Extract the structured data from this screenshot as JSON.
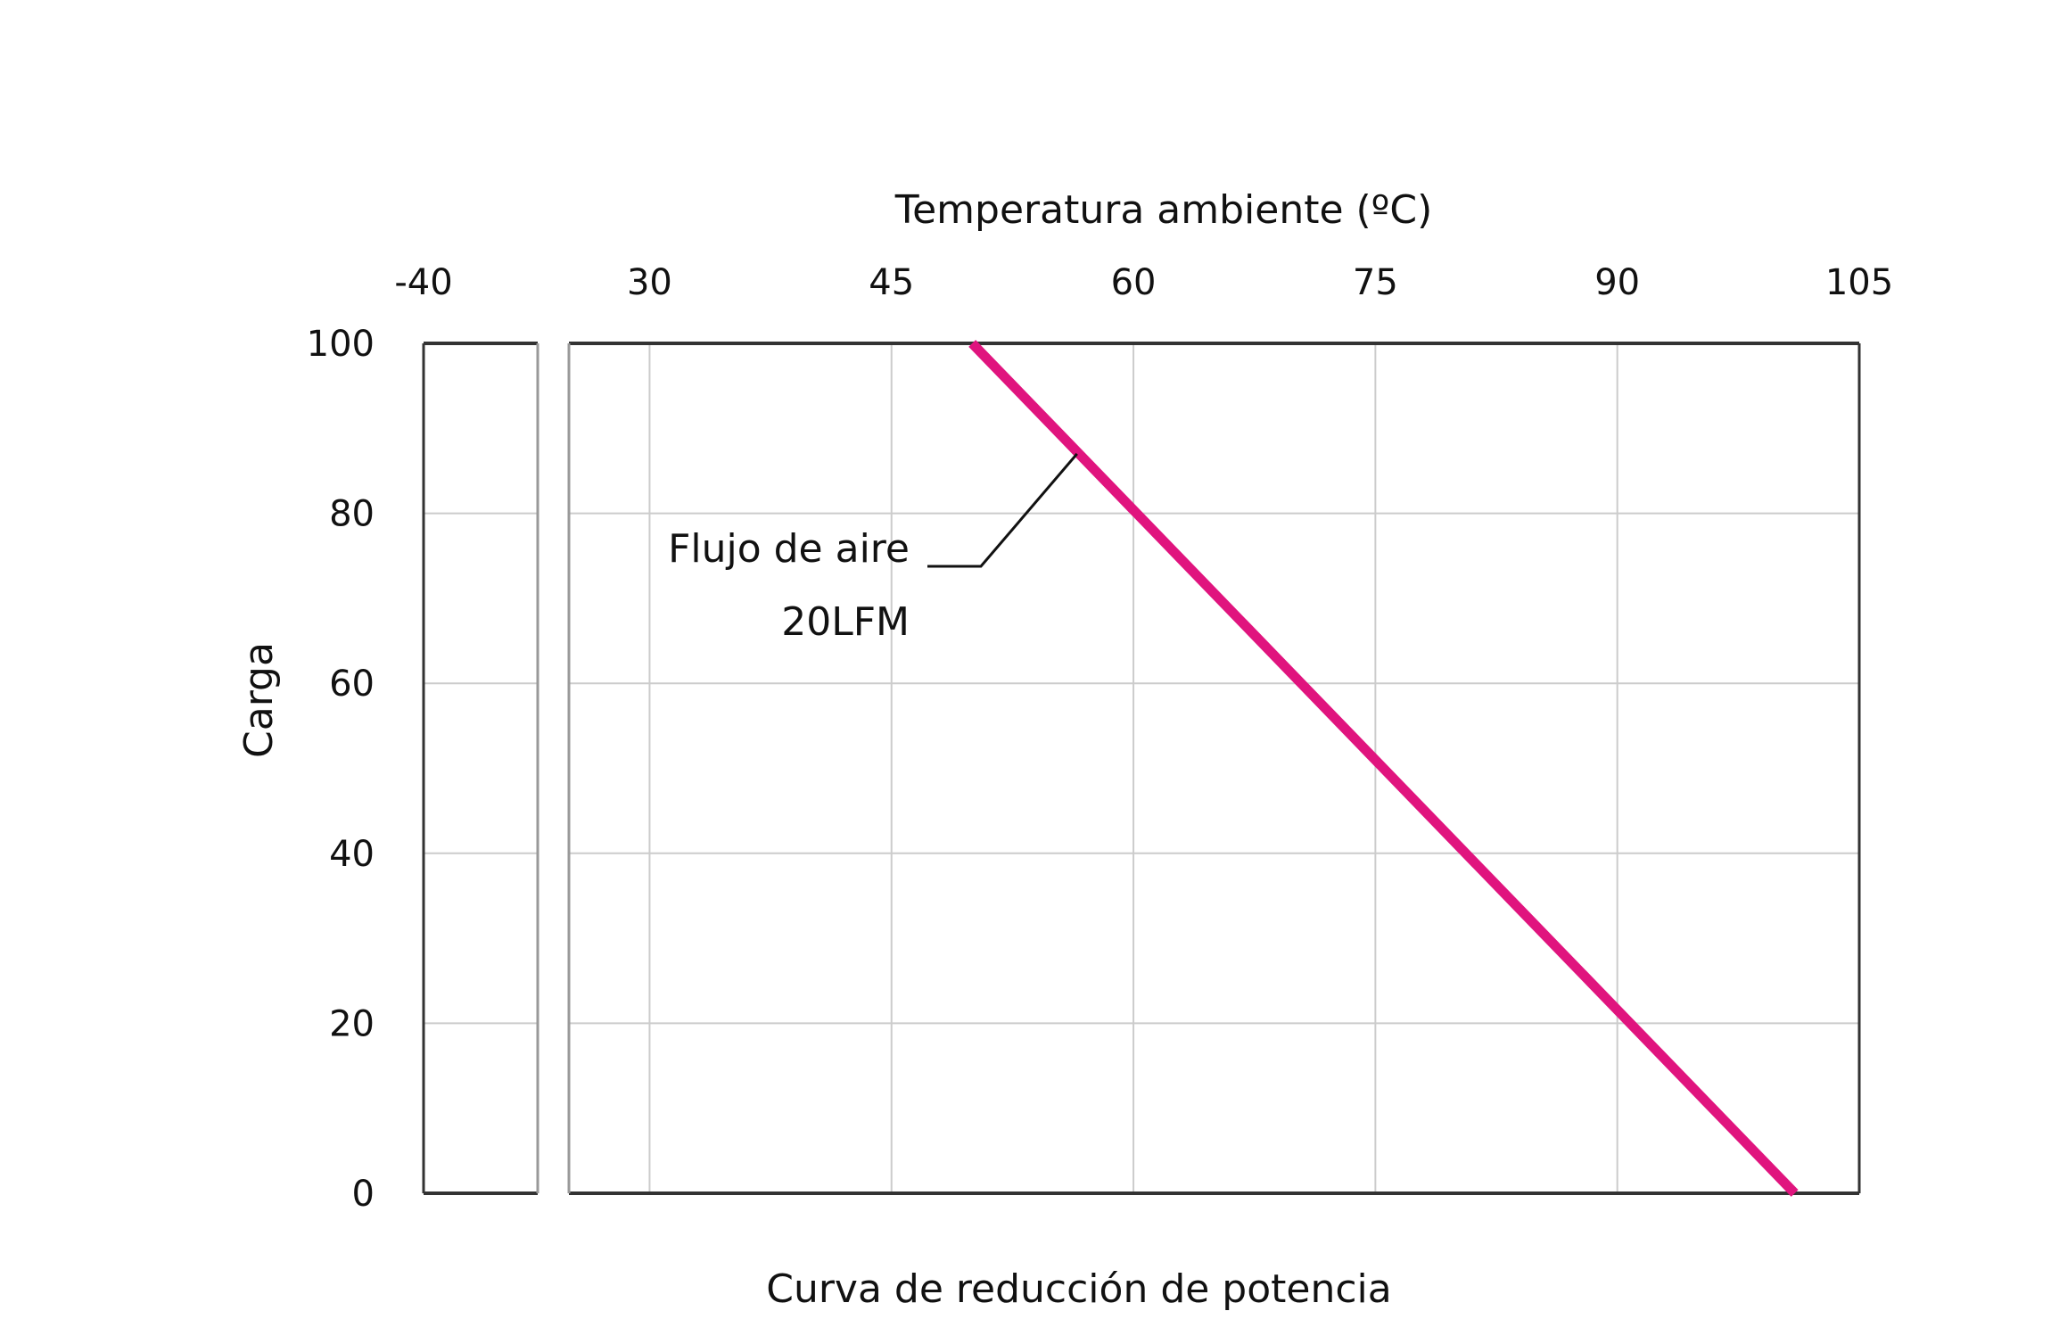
{
  "chart_data": {
    "type": "line",
    "title": "",
    "caption": "Curva de reducción de potencia",
    "xlabel": "Temperatura ambiente (ºC)",
    "ylabel": "Carga",
    "x_axis_position": "top",
    "x_axis_break": true,
    "x_ticks": [
      -40,
      30,
      45,
      60,
      75,
      90,
      105
    ],
    "x_tick_labels": [
      "-40",
      "30",
      "45",
      "60",
      "75",
      "90",
      "105"
    ],
    "y_ticks": [
      0,
      20,
      40,
      60,
      80,
      100
    ],
    "y_tick_labels": [
      "0",
      "20",
      "40",
      "60",
      "80",
      "100"
    ],
    "xlim": [
      30,
      105
    ],
    "ylim": [
      0,
      100
    ],
    "grid": true,
    "series": [
      {
        "x": [
          50,
          101
        ],
        "y": [
          100,
          0
        ],
        "color": "#E0147E"
      }
    ],
    "annotations": [
      {
        "text_line1": "Flujo de aire",
        "text_line2": "20LFM",
        "points_to": {
          "x": 56.5,
          "y": 87
        }
      }
    ]
  }
}
